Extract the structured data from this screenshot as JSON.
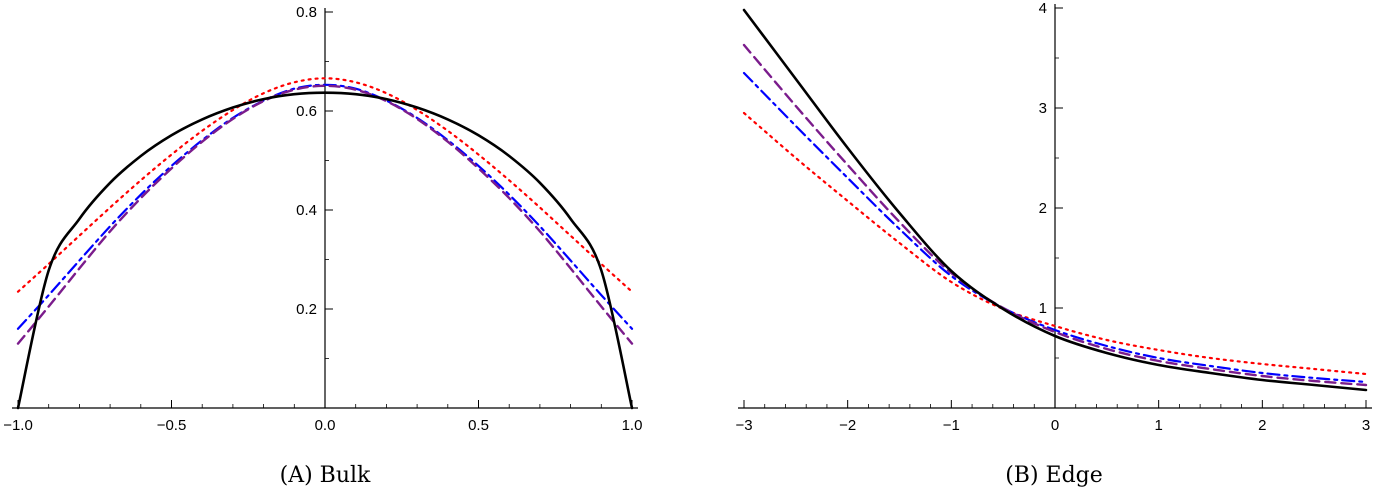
{
  "captions": {
    "a": "(A) Bulk",
    "b": "(B) Edge"
  },
  "chart_data": [
    {
      "type": "line",
      "xlim": [
        -1.0,
        1.0
      ],
      "ylim": [
        0.0,
        0.8
      ],
      "x_ticks": [
        -1.0,
        -0.5,
        0.0,
        0.5,
        1.0
      ],
      "x_tick_labels": [
        "-1.0",
        "-0.5",
        "0.0",
        "0.5",
        "1.0"
      ],
      "y_ticks": [
        0.2,
        0.4,
        0.6,
        0.8
      ],
      "y_tick_labels": [
        "0.2",
        "0.4",
        "0.6",
        "0.8"
      ],
      "grid": false,
      "series": [
        {
          "style": "solid",
          "color": "#000000",
          "x": [
            -1.0,
            -0.9,
            -0.8,
            -0.7,
            -0.6,
            -0.5,
            -0.4,
            -0.3,
            -0.2,
            -0.1,
            0.0,
            0.1,
            0.2,
            0.3,
            0.4,
            0.5,
            0.6,
            0.7,
            0.8,
            0.9,
            1.0
          ],
          "y": [
            0.0,
            0.278,
            0.382,
            0.455,
            0.509,
            0.551,
            0.583,
            0.607,
            0.624,
            0.634,
            0.637,
            0.634,
            0.624,
            0.607,
            0.583,
            0.551,
            0.509,
            0.455,
            0.382,
            0.278,
            0.0
          ]
        },
        {
          "style": "dashed",
          "color": "#7b1c8c",
          "x": [
            -1.0,
            -0.9,
            -0.8,
            -0.7,
            -0.6,
            -0.5,
            -0.4,
            -0.3,
            -0.2,
            -0.1,
            0.0,
            0.1,
            0.2,
            0.3,
            0.4,
            0.5,
            0.6,
            0.7,
            0.8,
            0.9,
            1.0
          ],
          "y": [
            0.13,
            0.205,
            0.282,
            0.357,
            0.424,
            0.484,
            0.538,
            0.584,
            0.62,
            0.643,
            0.651,
            0.643,
            0.62,
            0.584,
            0.538,
            0.484,
            0.424,
            0.357,
            0.282,
            0.205,
            0.13
          ]
        },
        {
          "style": "dashdot",
          "color": "#0000ff",
          "x": [
            -1.0,
            -0.9,
            -0.8,
            -0.7,
            -0.6,
            -0.5,
            -0.4,
            -0.3,
            -0.2,
            -0.1,
            0.0,
            0.1,
            0.2,
            0.3,
            0.4,
            0.5,
            0.6,
            0.7,
            0.8,
            0.9,
            1.0
          ],
          "y": [
            0.16,
            0.228,
            0.298,
            0.367,
            0.431,
            0.489,
            0.541,
            0.586,
            0.621,
            0.645,
            0.653,
            0.645,
            0.621,
            0.586,
            0.541,
            0.489,
            0.431,
            0.367,
            0.298,
            0.228,
            0.16
          ]
        },
        {
          "style": "dotted",
          "color": "#ff0000",
          "x": [
            -1.0,
            -0.9,
            -0.8,
            -0.7,
            -0.6,
            -0.5,
            -0.4,
            -0.3,
            -0.2,
            -0.1,
            0.0,
            0.1,
            0.2,
            0.3,
            0.4,
            0.5,
            0.6,
            0.7,
            0.8,
            0.9,
            1.0
          ],
          "y": [
            0.235,
            0.291,
            0.348,
            0.405,
            0.46,
            0.512,
            0.56,
            0.602,
            0.636,
            0.658,
            0.666,
            0.658,
            0.636,
            0.602,
            0.56,
            0.512,
            0.46,
            0.405,
            0.348,
            0.291,
            0.235
          ]
        }
      ]
    },
    {
      "type": "line",
      "xlim": [
        -3,
        3
      ],
      "ylim": [
        0,
        4
      ],
      "x_ticks": [
        -3,
        -2,
        -1,
        0,
        1,
        2,
        3
      ],
      "x_tick_labels": [
        "-3",
        "-2",
        "-1",
        "0",
        "1",
        "2",
        "3"
      ],
      "y_ticks": [
        1,
        2,
        3,
        4
      ],
      "y_tick_labels": [
        "1",
        "2",
        "3",
        "4"
      ],
      "grid": false,
      "series": [
        {
          "style": "solid",
          "color": "#000000",
          "x": [
            -3.0,
            -2.5,
            -2.0,
            -1.5,
            -1.0,
            -0.5,
            0.0,
            0.5,
            1.0,
            1.5,
            2.0,
            2.5,
            3.0
          ],
          "y": [
            3.98,
            3.29,
            2.6,
            1.95,
            1.37,
            0.99,
            0.72,
            0.55,
            0.43,
            0.35,
            0.28,
            0.23,
            0.18
          ]
        },
        {
          "style": "dashed",
          "color": "#7b1c8c",
          "x": [
            -3.0,
            -2.5,
            -2.0,
            -1.5,
            -1.0,
            -0.5,
            0.0,
            0.5,
            1.0,
            1.5,
            2.0,
            2.5,
            3.0
          ],
          "y": [
            3.63,
            3.02,
            2.43,
            1.86,
            1.35,
            1.0,
            0.76,
            0.59,
            0.47,
            0.39,
            0.32,
            0.27,
            0.23
          ]
        },
        {
          "style": "dashdot",
          "color": "#0000ff",
          "x": [
            -3.0,
            -2.5,
            -2.0,
            -1.5,
            -1.0,
            -0.5,
            0.0,
            0.5,
            1.0,
            1.5,
            2.0,
            2.5,
            3.0
          ],
          "y": [
            3.35,
            2.82,
            2.3,
            1.79,
            1.32,
            1.0,
            0.78,
            0.62,
            0.5,
            0.42,
            0.35,
            0.3,
            0.26
          ]
        },
        {
          "style": "dotted",
          "color": "#ff0000",
          "x": [
            -3.0,
            -2.5,
            -2.0,
            -1.5,
            -1.0,
            -0.5,
            0.0,
            0.5,
            1.0,
            1.5,
            2.0,
            2.5,
            3.0
          ],
          "y": [
            2.95,
            2.5,
            2.07,
            1.65,
            1.26,
            0.99,
            0.82,
            0.68,
            0.58,
            0.5,
            0.44,
            0.39,
            0.34
          ]
        }
      ]
    }
  ]
}
